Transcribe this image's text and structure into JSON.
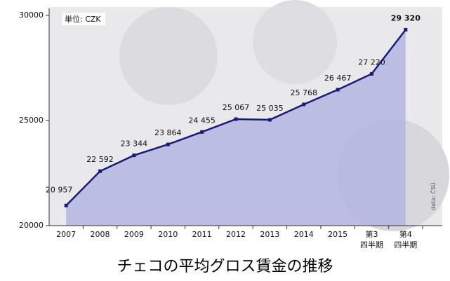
{
  "chart_data": {
    "type": "line",
    "title": "チェコの平均グロス賃金の推移",
    "unit_label": "単位: CZK",
    "source": "data: ČSÚ",
    "categories": [
      "2007",
      "2008",
      "2009",
      "2010",
      "2011",
      "2012",
      "2013",
      "2014",
      "2015",
      "第3\n四半期",
      "第4\n四半期"
    ],
    "series": [
      {
        "name": "平均グロス賃金",
        "color": "#1a1a78",
        "values": [
          20957,
          22592,
          23344,
          23864,
          24455,
          25067,
          25035,
          25768,
          26467,
          27220,
          29320
        ],
        "value_labels": [
          "20 957",
          "22 592",
          "23 344",
          "23 864",
          "24 455",
          "25 067",
          "25 035",
          "25 768",
          "26 467",
          "27 220",
          "29 320"
        ]
      }
    ],
    "area_color": "#b3b6e0",
    "ylim": [
      20000,
      30000
    ],
    "yticks": [
      20000,
      25000,
      30000
    ]
  }
}
